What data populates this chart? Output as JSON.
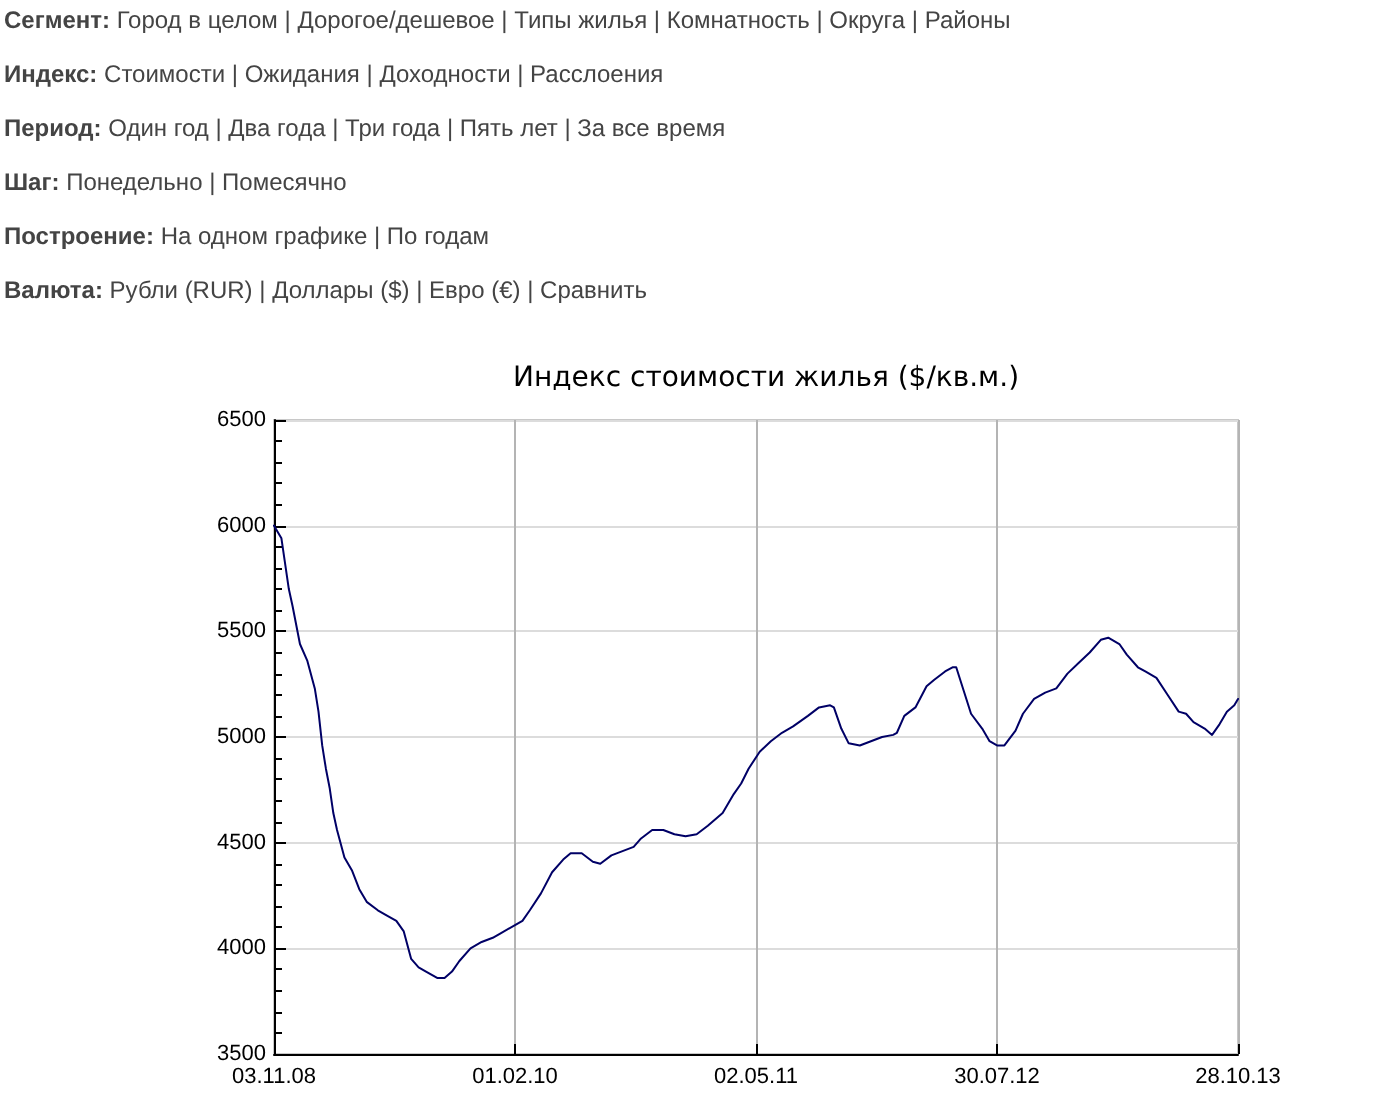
{
  "chart_data": {
    "type": "line",
    "title": "Индекс стоимости жилья ($/кв.м.)",
    "annotations": [
      "Сегмент: Город в целом | Дорогое/дешевое | Типы жилья | Комнатность | Округа | Районы",
      "Индекс: Стоимости | Ожидания | Доходности | Расслоения",
      "Период: Один год | Два года | Три года | Пять лет | За все время",
      "Шаг: Понедельно | Помесячно",
      "Построение: На одном графике | По годам",
      "Валюта: Рубли (RUR) | Доллары ($) | Евро (€) | Сравнить"
    ],
    "x": [
      "2008-11-03",
      "2008-11-17",
      "2008-12-01",
      "2008-12-08",
      "2008-12-22",
      "2009-01-05",
      "2009-01-19",
      "2009-01-26",
      "2009-02-02",
      "2009-02-09",
      "2009-02-16",
      "2009-02-23",
      "2009-03-02",
      "2009-03-16",
      "2009-03-30",
      "2009-04-13",
      "2009-04-27",
      "2009-05-18",
      "2009-06-01",
      "2009-06-22",
      "2009-07-06",
      "2009-07-20",
      "2009-08-03",
      "2009-08-17",
      "2009-09-07",
      "2009-09-21",
      "2009-10-05",
      "2009-10-19",
      "2009-11-09",
      "2009-11-30",
      "2009-12-21",
      "2010-01-04",
      "2010-02-01",
      "2010-02-15",
      "2010-03-01",
      "2010-03-22",
      "2010-04-12",
      "2010-05-03",
      "2010-05-17",
      "2010-06-07",
      "2010-06-28",
      "2010-07-12",
      "2010-08-02",
      "2010-08-23",
      "2010-09-13",
      "2010-09-27",
      "2010-10-18",
      "2010-11-08",
      "2010-11-29",
      "2010-12-20",
      "2011-01-10",
      "2011-01-31",
      "2011-02-28",
      "2011-03-21",
      "2011-04-04",
      "2011-04-18",
      "2011-05-09",
      "2011-05-30",
      "2011-06-20",
      "2011-07-11",
      "2011-08-08",
      "2011-08-29",
      "2011-09-19",
      "2011-09-26",
      "2011-10-10",
      "2011-10-24",
      "2011-11-14",
      "2011-12-05",
      "2011-12-26",
      "2012-01-16",
      "2012-01-23",
      "2012-02-06",
      "2012-02-27",
      "2012-03-19",
      "2012-04-02",
      "2012-04-23",
      "2012-05-07",
      "2012-05-14",
      "2012-05-28",
      "2012-06-11",
      "2012-07-02",
      "2012-07-16",
      "2012-07-30",
      "2012-08-13",
      "2012-09-03",
      "2012-09-17",
      "2012-10-08",
      "2012-10-29",
      "2012-11-19",
      "2012-12-10",
      "2012-12-31",
      "2013-01-21",
      "2013-02-11",
      "2013-02-25",
      "2013-03-18",
      "2013-04-01",
      "2013-04-22",
      "2013-05-06",
      "2013-05-27",
      "2013-06-17",
      "2013-07-08",
      "2013-07-22",
      "2013-08-05",
      "2013-08-26",
      "2013-09-09",
      "2013-09-23",
      "2013-10-07",
      "2013-10-21",
      "2013-10-28"
    ],
    "values": [
      6000,
      5940,
      5700,
      5620,
      5440,
      5360,
      5230,
      5120,
      4960,
      4850,
      4760,
      4640,
      4560,
      4430,
      4370,
      4280,
      4220,
      4180,
      4160,
      4130,
      4080,
      3950,
      3910,
      3890,
      3860,
      3860,
      3890,
      3940,
      4000,
      4030,
      4050,
      4070,
      4110,
      4130,
      4180,
      4260,
      4360,
      4420,
      4450,
      4450,
      4410,
      4400,
      4440,
      4460,
      4480,
      4520,
      4560,
      4560,
      4540,
      4530,
      4540,
      4580,
      4640,
      4730,
      4780,
      4850,
      4930,
      4980,
      5020,
      5050,
      5100,
      5140,
      5150,
      5140,
      5040,
      4970,
      4960,
      4980,
      5000,
      5010,
      5020,
      5100,
      5140,
      5240,
      5270,
      5310,
      5330,
      5330,
      5220,
      5110,
      5040,
      4980,
      4960,
      4960,
      5030,
      5110,
      5180,
      5210,
      5230,
      5300,
      5350,
      5400,
      5460,
      5470,
      5440,
      5390,
      5330,
      5310,
      5280,
      5200,
      5120,
      5110,
      5070,
      5040,
      5010,
      5060,
      5120,
      5150,
      5180
    ],
    "color": "#000066",
    "marker": "none",
    "line_style": "solid",
    "grid": true,
    "xlim": [
      "2008-11-03",
      "2013-10-28"
    ],
    "xticks": [
      {
        "value": "2008-11-03",
        "label": "03.11.08"
      },
      {
        "value": "2010-02-01",
        "label": "01.02.10"
      },
      {
        "value": "2011-05-02",
        "label": "02.05.11"
      },
      {
        "value": "2012-07-30",
        "label": "30.07.12"
      },
      {
        "value": "2013-10-28",
        "label": "28.10.13"
      }
    ],
    "ylim": [
      3500,
      6500
    ],
    "yticks": [
      3500,
      4000,
      4500,
      5000,
      5500,
      6000,
      6500
    ]
  }
}
